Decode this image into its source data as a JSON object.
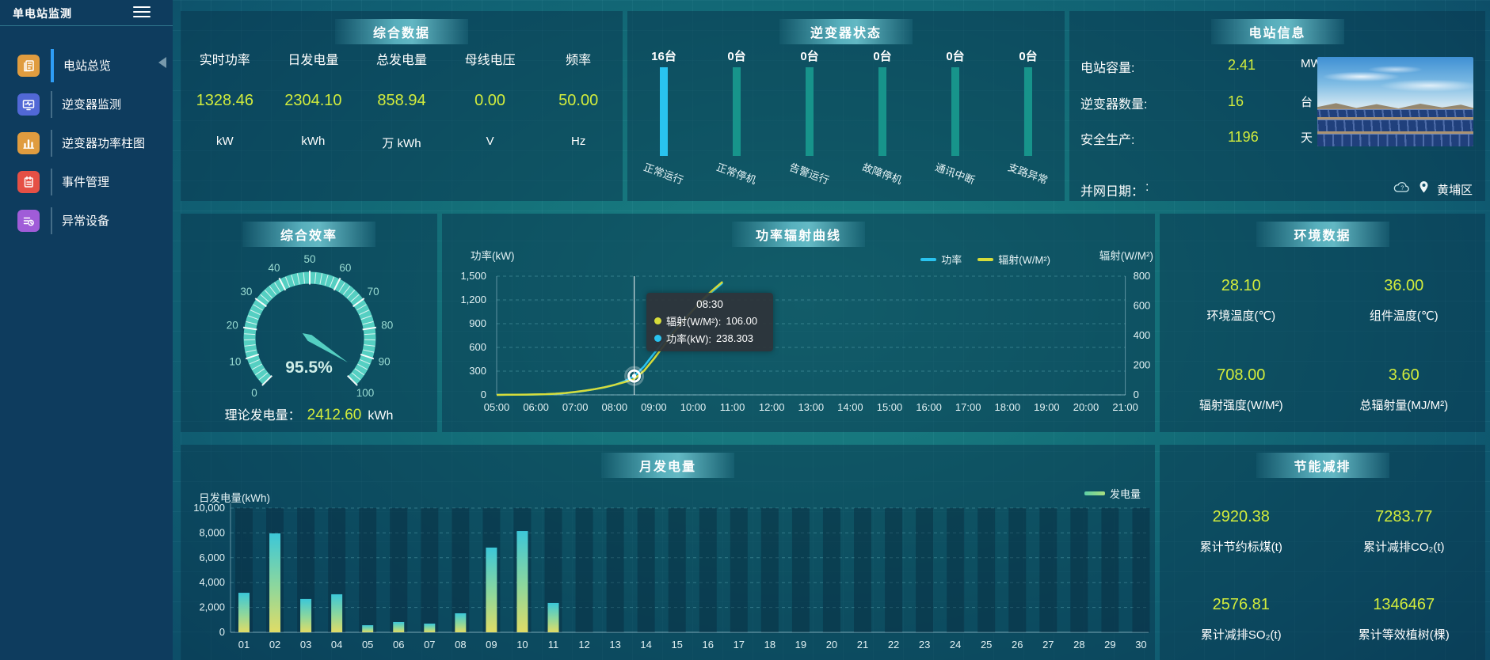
{
  "app": {
    "title": "单电站监测"
  },
  "colors": {
    "value_yellow": "#d2ec3c",
    "power_cyan": "#29c3ef",
    "radiation_yellow": "#d6dc3a",
    "inverter_bar_teal": "#17948b",
    "gauge_teal": "#55cfc2",
    "active_accent_blue": "#2e9df5"
  },
  "sidebar": {
    "items": [
      {
        "label": "电站总览",
        "icon": "station-overview-icon",
        "icon_color": "#e09c3f",
        "active": true
      },
      {
        "label": "逆变器监测",
        "icon": "inverter-monitor-icon",
        "icon_color": "#5168d6",
        "active": false
      },
      {
        "label": "逆变器功率柱图",
        "icon": "inverter-power-bars-icon",
        "icon_color": "#e09c3f",
        "active": false
      },
      {
        "label": "事件管理",
        "icon": "event-management-icon",
        "icon_color": "#e55045",
        "active": false
      },
      {
        "label": "异常设备",
        "icon": "abnormal-devices-icon",
        "icon_color": "#a05cd8",
        "active": false
      }
    ]
  },
  "panels": {
    "summary": {
      "title": "综合数据",
      "stats": [
        {
          "label": "实时功率",
          "value": "1328.46",
          "unit": "kW"
        },
        {
          "label": "日发电量",
          "value": "2304.10",
          "unit": "kWh"
        },
        {
          "label": "总发电量",
          "value": "858.94",
          "unit": "万 kWh"
        },
        {
          "label": "母线电压",
          "value": "0.00",
          "unit": "V"
        },
        {
          "label": "频率",
          "value": "50.00",
          "unit": "Hz"
        }
      ]
    },
    "inverter_status": {
      "title": "逆变器状态",
      "items": [
        {
          "count": "16台",
          "label": "正常运行"
        },
        {
          "count": "0台",
          "label": "正常停机"
        },
        {
          "count": "0台",
          "label": "告警运行"
        },
        {
          "count": "0台",
          "label": "故障停机"
        },
        {
          "count": "0台",
          "label": "通讯中断"
        },
        {
          "count": "0台",
          "label": "支路异常"
        }
      ]
    },
    "station_info": {
      "title": "电站信息",
      "rows": [
        {
          "label": "电站容量:",
          "value": "2.41",
          "unit": "MW"
        },
        {
          "label": "逆变器数量:",
          "value": "16",
          "unit": "台"
        },
        {
          "label": "安全生产:",
          "value": "1196",
          "unit": "天"
        },
        {
          "label": "并网日期：",
          "value": ":",
          "unit": ""
        }
      ],
      "location": "黄埔区"
    },
    "efficiency": {
      "title": "综合效率",
      "gauge_value": 95.5,
      "gauge_display": "95.5%",
      "gauge_min": 0,
      "gauge_max": 100,
      "theory_label": "理论发电量：",
      "theory_value": "2412.60",
      "theory_unit": "kWh"
    },
    "power_radiation": {
      "title": "功率辐射曲线",
      "legend": {
        "power": "功率",
        "radiation": "辐射(W/M²)"
      },
      "tooltip": {
        "time": "08:30",
        "radiation_label": "辐射(W/M²):",
        "radiation_value": "106.00",
        "power_label": "功率(kW):",
        "power_value": "238.303"
      }
    },
    "environment": {
      "title": "环境数据",
      "stats": [
        {
          "value": "28.10",
          "label": "环境温度(℃)"
        },
        {
          "value": "36.00",
          "label": "组件温度(℃)"
        },
        {
          "value": "708.00",
          "label": "辐射强度(W/M²)"
        },
        {
          "value": "3.60",
          "label": "总辐射量(MJ/M²)"
        }
      ]
    },
    "monthly": {
      "title": "月发电量",
      "legend": "发电量"
    },
    "savings": {
      "title": "节能减排",
      "stats": [
        {
          "value": "2920.38",
          "label": "累计节约标煤(t)"
        },
        {
          "value": "7283.77",
          "label": "累计减排CO₂(t)"
        },
        {
          "value": "2576.81",
          "label": "累计减排SO₂(t)"
        },
        {
          "value": "1346467",
          "label": "累计等效植树(棵)"
        }
      ]
    }
  },
  "chart_data": [
    {
      "id": "inverter_status",
      "type": "bar",
      "title": "逆变器状态",
      "categories": [
        "正常运行",
        "正常停机",
        "告警运行",
        "故障停机",
        "通讯中断",
        "支路异常"
      ],
      "values": [
        16,
        0,
        0,
        0,
        0,
        0
      ],
      "unit": "台",
      "bar_colors": [
        "#29c3ef",
        "#17948b",
        "#17948b",
        "#17948b",
        "#17948b",
        "#17948b"
      ]
    },
    {
      "id": "power_radiation",
      "type": "line",
      "title": "功率辐射曲线",
      "x_ticks": [
        "05:00",
        "06:00",
        "07:00",
        "08:00",
        "09:00",
        "10:00",
        "11:00",
        "12:00",
        "13:00",
        "14:00",
        "15:00",
        "16:00",
        "17:00",
        "18:00",
        "19:00",
        "20:00",
        "21:00"
      ],
      "x_range_hours": [
        5,
        21
      ],
      "y_left": {
        "name": "功率(kW)",
        "min": 0,
        "max": 1500,
        "ticks": [
          0,
          300,
          600,
          900,
          1200,
          1500
        ]
      },
      "y_right": {
        "name": "辐射(W/M²)",
        "min": 0,
        "max": 800,
        "ticks": [
          0,
          200,
          400,
          600,
          800
        ]
      },
      "grid": "horizontal-dashed",
      "legend_position": "top-right",
      "series": [
        {
          "name": "功率",
          "axis": "left",
          "color": "#29c3ef",
          "points": [
            [
              5,
              1
            ],
            [
              5.25,
              1
            ],
            [
              5.5,
              2
            ],
            [
              5.75,
              3
            ],
            [
              6,
              5
            ],
            [
              6.25,
              8
            ],
            [
              6.5,
              14
            ],
            [
              6.75,
              23
            ],
            [
              7,
              35
            ],
            [
              7.25,
              52
            ],
            [
              7.5,
              73
            ],
            [
              7.75,
              96
            ],
            [
              8,
              125
            ],
            [
              8.25,
              172
            ],
            [
              8.5,
              238.3
            ],
            [
              8.75,
              360
            ],
            [
              9,
              520
            ],
            [
              9.25,
              675
            ],
            [
              9.5,
              825
            ],
            [
              9.75,
              955
            ],
            [
              10,
              1075
            ],
            [
              10.25,
              1195
            ],
            [
              10.5,
              1310
            ],
            [
              10.75,
              1415
            ]
          ]
        },
        {
          "name": "辐射(W/M²)",
          "axis": "right",
          "color": "#d6dc3a",
          "points": [
            [
              5,
              0
            ],
            [
              5.25,
              1
            ],
            [
              5.5,
              1
            ],
            [
              5.75,
              2
            ],
            [
              6,
              3
            ],
            [
              6.25,
              5
            ],
            [
              6.5,
              8
            ],
            [
              6.75,
              13
            ],
            [
              7,
              20
            ],
            [
              7.25,
              29
            ],
            [
              7.5,
              39
            ],
            [
              7.75,
              52
            ],
            [
              8,
              68
            ],
            [
              8.25,
              86
            ],
            [
              8.5,
              106
            ],
            [
              8.75,
              162
            ],
            [
              9,
              242
            ],
            [
              9.25,
              330
            ],
            [
              9.5,
              418
            ],
            [
              9.75,
              498
            ],
            [
              10,
              572
            ],
            [
              10.25,
              645
            ],
            [
              10.5,
              706
            ],
            [
              10.75,
              762
            ]
          ]
        }
      ],
      "crosshair": {
        "time": "08:30",
        "hour": 8.5,
        "power": 238.303,
        "radiation": 106
      }
    },
    {
      "id": "monthly_generation",
      "type": "bar",
      "title": "月发电量",
      "ylabel": "日发电量(kWh)",
      "ylim": [
        0,
        10000
      ],
      "yticks": [
        0,
        2000,
        4000,
        6000,
        8000,
        10000
      ],
      "legend": "发电量",
      "categories": [
        "01",
        "02",
        "03",
        "04",
        "05",
        "06",
        "07",
        "08",
        "09",
        "10",
        "11",
        "12",
        "13",
        "14",
        "15",
        "16",
        "17",
        "18",
        "19",
        "20",
        "21",
        "22",
        "23",
        "24",
        "25",
        "26",
        "27",
        "28",
        "29",
        "30"
      ],
      "values": [
        3180,
        7960,
        2680,
        3060,
        570,
        830,
        700,
        1530,
        6820,
        8150,
        2360,
        0,
        0,
        0,
        0,
        0,
        0,
        0,
        0,
        0,
        0,
        0,
        0,
        0,
        0,
        0,
        0,
        0,
        0,
        0
      ]
    }
  ]
}
